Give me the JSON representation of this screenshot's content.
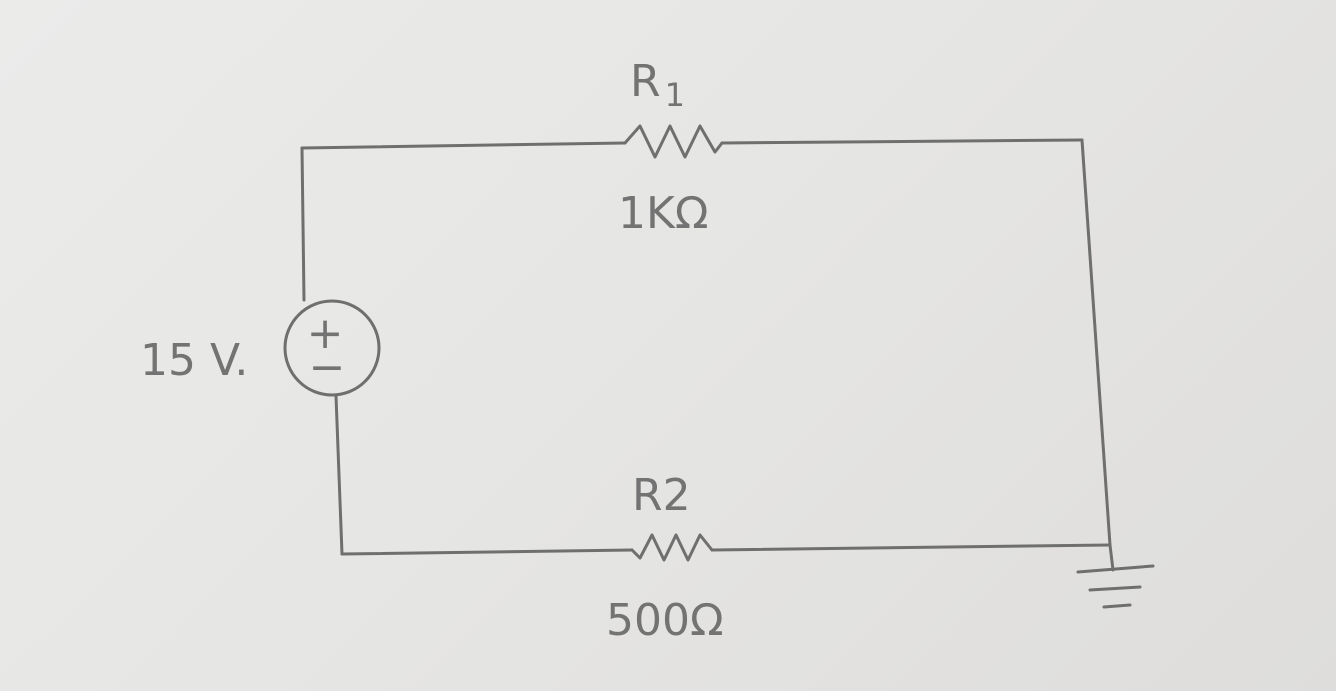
{
  "diagram": {
    "source": {
      "voltage_label": "15 V.",
      "polarity_plus": "+",
      "polarity_minus": "−"
    },
    "resistors": [
      {
        "name": "R1",
        "name_main": "R",
        "name_sub": "1",
        "value_label": "1KΩ"
      },
      {
        "name": "R2",
        "name_main": "R2",
        "name_sub": "",
        "value_label": "500Ω"
      }
    ],
    "ground": "ground",
    "colors": {
      "paper": "#e7e7e5",
      "ink": "#6f6f6f"
    }
  }
}
